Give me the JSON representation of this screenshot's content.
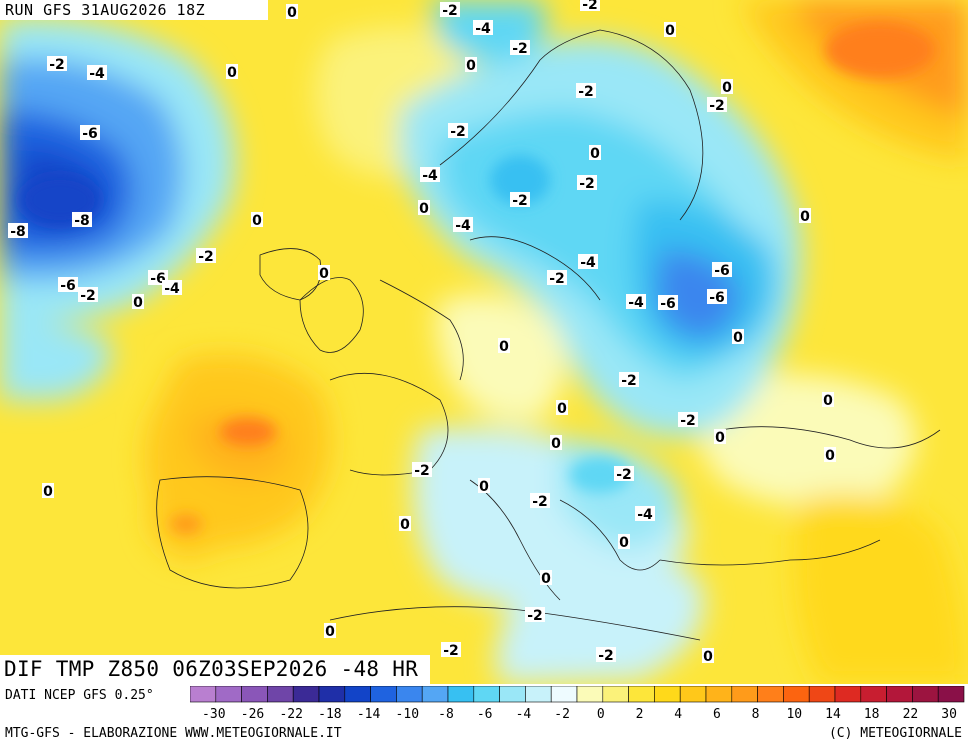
{
  "header": {
    "run": "RUN GFS 31AUG2026 18Z"
  },
  "title": "DIF TMP Z850 06Z03SEP2026 -48 HR",
  "footer": {
    "source": "DATI NCEP GFS 0.25°",
    "credit_left": "MTG-GFS - ELABORAZIONE WWW.METEOGIORNALE.IT",
    "credit_right": "(C) METEOGIORNALE"
  },
  "legend": {
    "colors": [
      "#b97fd0",
      "#a06ac6",
      "#8a56b8",
      "#6f45a8",
      "#3b2a96",
      "#1f2fa8",
      "#1244c8",
      "#1f63e0",
      "#3a86ee",
      "#54a6f4",
      "#37c0f2",
      "#5fd7f4",
      "#9ae7f7",
      "#c8f2fa",
      "#eefbff",
      "#fbfbb8",
      "#fbf27a",
      "#fde63a",
      "#ffd91a",
      "#ffc81a",
      "#ffb31a",
      "#ff9b1a",
      "#ff7f1a",
      "#fc6410",
      "#ef4716",
      "#de2a22",
      "#c81e30",
      "#b3173a",
      "#9c1440",
      "#8a1048"
    ],
    "tick_labels": [
      "-30",
      "-26",
      "-22",
      "-18",
      "-14",
      "-10",
      "-8",
      "-6",
      "-4",
      "-2",
      "0",
      "2",
      "4",
      "6",
      "8",
      "10",
      "14",
      "18",
      "22",
      "30"
    ]
  },
  "contour_labels": [
    "-2",
    "0",
    "-2",
    "-4",
    "-2",
    "0",
    "0",
    "-2",
    "-4",
    "0",
    "0",
    "-2",
    "-6",
    "-2",
    "-2",
    "0",
    "-2",
    "-2",
    "-4",
    "0",
    "-8",
    "-8",
    "-4",
    "0",
    "0",
    "-2",
    "-4",
    "-2",
    "0",
    "-6",
    "-6",
    "-2",
    "-6",
    "0",
    "-4",
    "-6",
    "-6",
    "-4",
    "0",
    "-2",
    "0",
    "-2",
    "0",
    "0",
    "0",
    "0",
    "-2",
    "0",
    "-2",
    "-2",
    "0",
    "0",
    "-4",
    "0",
    "0",
    "-2",
    "-2",
    "0",
    "0",
    "-2",
    "0"
  ]
}
